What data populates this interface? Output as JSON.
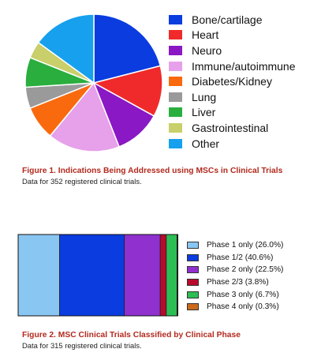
{
  "chart_data": [
    {
      "type": "pie",
      "categories": [
        "Bone/cartilage",
        "Heart",
        "Neuro",
        "Immune/autoimmune",
        "Diabetes/Kidney",
        "Lung",
        "Liver",
        "Gastrointestinal",
        "Other"
      ],
      "values": [
        21,
        12,
        11,
        17,
        8,
        5,
        7,
        4,
        15
      ],
      "colors": [
        "#0a3ce0",
        "#f02a2a",
        "#8a18c4",
        "#e7a0ea",
        "#f96a0e",
        "#9a9a9a",
        "#2aae3e",
        "#c9cf6a",
        "#17a0ee"
      ],
      "legend_position": "right",
      "caption_title": "Figure 1.  Indications Being Addressed using MSCs in Clinical Trials",
      "caption_sub": "Data for 352 registered clinical trials."
    },
    {
      "type": "bar",
      "stacked": true,
      "orientation": "horizontal",
      "series": [
        {
          "name": "Phase 1 only (26.0%)",
          "values": [
            26.0
          ]
        },
        {
          "name": "Phase 1/2 (40.6%)",
          "values": [
            40.6
          ]
        },
        {
          "name": "Phase 2 only (22.5%)",
          "values": [
            22.5
          ]
        },
        {
          "name": "Phase 2/3 (3.8%)",
          "values": [
            3.8
          ]
        },
        {
          "name": "Phase 3 only (6.7%)",
          "values": [
            6.7
          ]
        },
        {
          "name": "Phase 4 only (0.3%)",
          "values": [
            0.3
          ]
        }
      ],
      "colors": [
        "#8ac6f2",
        "#0a3ce0",
        "#9030cf",
        "#b80a2c",
        "#2cbe54",
        "#c96a1c"
      ],
      "legend_position": "right",
      "caption_title": "Figure 2.  MSC Clinical Trials Classified by Clinical Phase",
      "caption_sub": "Data for 315 registered clinical trials."
    }
  ]
}
